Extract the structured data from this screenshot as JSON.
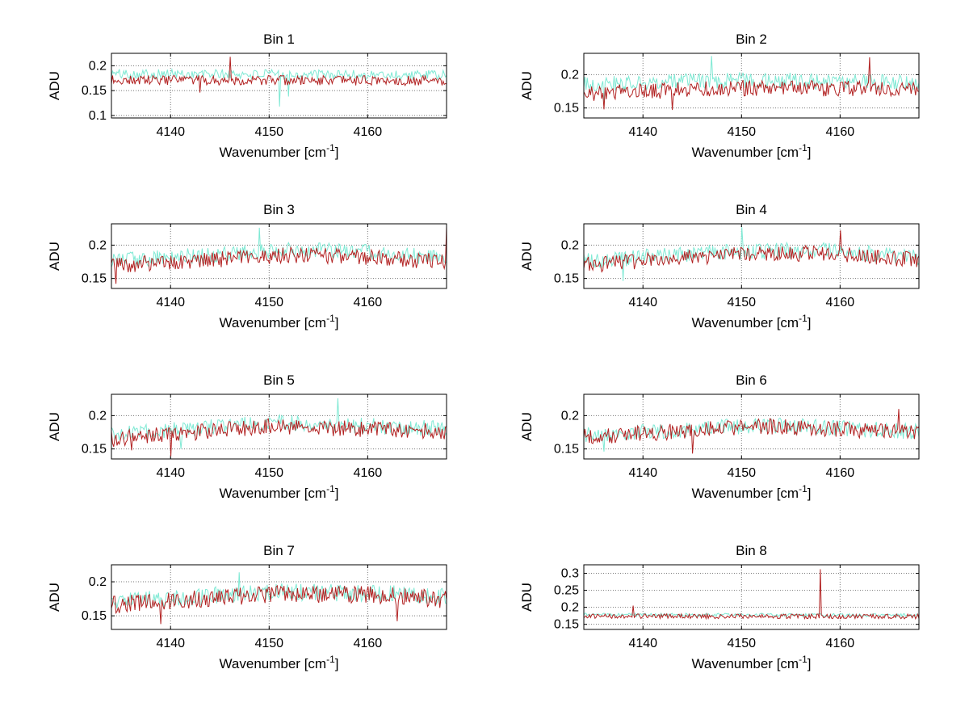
{
  "figure": {
    "background": "#FFFFFF"
  },
  "colors": {
    "trace_cyan": "#7FE9D4",
    "trace_red": "#B22222",
    "axis": "#000000",
    "grid_dots": "#777777",
    "background": "#FFFFFF"
  },
  "chart_data": [
    {
      "type": "line",
      "title": "Bin 1",
      "xlabel": {
        "main": "Wavenumber [cm",
        "sup": "-1",
        "end": "]"
      },
      "ylabel": "ADU",
      "x_range": [
        4134,
        4168
      ],
      "x_ticks": [
        4140,
        4150,
        4160
      ],
      "ylim": [
        0.095,
        0.225
      ],
      "y_ticks": [
        0.1,
        0.15,
        0.2
      ],
      "grid": true,
      "legend": "none",
      "series": [
        {
          "name": "cyan-trace",
          "color": "#7FE9D4",
          "seed": 101,
          "noise": 0.01,
          "baseline": [
            [
              4134,
              0.184
            ],
            [
              4168,
              0.181
            ]
          ],
          "spikes": [
            [
              4151,
              0.118
            ],
            [
              4152,
              0.138
            ]
          ]
        },
        {
          "name": "red-trace",
          "color": "#B22222",
          "seed": 202,
          "noise": 0.01,
          "baseline": [
            [
              4134,
              0.171
            ],
            [
              4168,
              0.17
            ]
          ],
          "spikes": [
            [
              4146,
              0.218
            ],
            [
              4143,
              0.146
            ]
          ]
        }
      ]
    },
    {
      "type": "line",
      "title": "Bin 2",
      "xlabel": {
        "main": "Wavenumber [cm",
        "sup": "-1",
        "end": "]"
      },
      "ylabel": "ADU",
      "x_range": [
        4134,
        4168
      ],
      "x_ticks": [
        4140,
        4150,
        4160
      ],
      "ylim": [
        0.135,
        0.232
      ],
      "y_ticks": [
        0.15,
        0.2
      ],
      "grid": true,
      "legend": "none",
      "series": [
        {
          "name": "cyan-trace",
          "color": "#7FE9D4",
          "seed": 103,
          "noise": 0.012,
          "baseline": [
            [
              4134,
              0.186
            ],
            [
              4150,
              0.192
            ],
            [
              4168,
              0.188
            ]
          ],
          "spikes": [
            [
              4147,
              0.228
            ],
            [
              4136,
              0.152
            ]
          ]
        },
        {
          "name": "red-trace",
          "color": "#B22222",
          "seed": 204,
          "noise": 0.012,
          "baseline": [
            [
              4134,
              0.172
            ],
            [
              4150,
              0.18
            ],
            [
              4168,
              0.178
            ]
          ],
          "spikes": [
            [
              4136,
              0.148
            ],
            [
              4143,
              0.147
            ],
            [
              4163,
              0.226
            ]
          ]
        }
      ]
    },
    {
      "type": "line",
      "title": "Bin 3",
      "xlabel": {
        "main": "Wavenumber [cm",
        "sup": "-1",
        "end": "]"
      },
      "ylabel": "ADU",
      "x_range": [
        4134,
        4168
      ],
      "x_ticks": [
        4140,
        4150,
        4160
      ],
      "ylim": [
        0.135,
        0.232
      ],
      "y_ticks": [
        0.15,
        0.2
      ],
      "grid": true,
      "legend": "none",
      "series": [
        {
          "name": "cyan-trace",
          "color": "#7FE9D4",
          "seed": 105,
          "noise": 0.012,
          "baseline": [
            [
              4134,
              0.176
            ],
            [
              4152,
              0.193
            ],
            [
              4158,
              0.192
            ],
            [
              4168,
              0.18
            ]
          ],
          "spikes": [
            [
              4149,
              0.226
            ]
          ]
        },
        {
          "name": "red-trace",
          "color": "#B22222",
          "seed": 206,
          "noise": 0.012,
          "baseline": [
            [
              4134,
              0.169
            ],
            [
              4152,
              0.185
            ],
            [
              4158,
              0.184
            ],
            [
              4168,
              0.175
            ]
          ],
          "spikes": [
            [
              4134.4,
              0.142
            ],
            [
              4168,
              0.228
            ]
          ]
        }
      ]
    },
    {
      "type": "line",
      "title": "Bin 4",
      "xlabel": {
        "main": "Wavenumber [cm",
        "sup": "-1",
        "end": "]"
      },
      "ylabel": "ADU",
      "x_range": [
        4134,
        4168
      ],
      "x_ticks": [
        4140,
        4150,
        4160
      ],
      "ylim": [
        0.135,
        0.232
      ],
      "y_ticks": [
        0.15,
        0.2
      ],
      "grid": true,
      "legend": "none",
      "series": [
        {
          "name": "cyan-trace",
          "color": "#7FE9D4",
          "seed": 107,
          "noise": 0.012,
          "baseline": [
            [
              4134,
              0.176
            ],
            [
              4148,
              0.19
            ],
            [
              4158,
              0.193
            ],
            [
              4168,
              0.182
            ]
          ],
          "spikes": [
            [
              4138,
              0.146
            ],
            [
              4150,
              0.227
            ]
          ]
        },
        {
          "name": "red-trace",
          "color": "#B22222",
          "seed": 208,
          "noise": 0.012,
          "baseline": [
            [
              4134,
              0.17
            ],
            [
              4148,
              0.185
            ],
            [
              4158,
              0.188
            ],
            [
              4168,
              0.177
            ]
          ],
          "spikes": [
            [
              4160,
              0.222
            ]
          ]
        }
      ]
    },
    {
      "type": "line",
      "title": "Bin 5",
      "xlabel": {
        "main": "Wavenumber [cm",
        "sup": "-1",
        "end": "]"
      },
      "ylabel": "ADU",
      "x_range": [
        4134,
        4168
      ],
      "x_ticks": [
        4140,
        4150,
        4160
      ],
      "ylim": [
        0.135,
        0.232
      ],
      "y_ticks": [
        0.15,
        0.2
      ],
      "grid": true,
      "legend": "none",
      "series": [
        {
          "name": "cyan-trace",
          "color": "#7FE9D4",
          "seed": 109,
          "noise": 0.012,
          "baseline": [
            [
              4134,
              0.172
            ],
            [
              4150,
              0.19
            ],
            [
              4168,
              0.18
            ]
          ],
          "spikes": [
            [
              4157,
              0.226
            ],
            [
              4141,
              0.15
            ]
          ]
        },
        {
          "name": "red-trace",
          "color": "#B22222",
          "seed": 210,
          "noise": 0.012,
          "baseline": [
            [
              4134,
              0.165
            ],
            [
              4150,
              0.184
            ],
            [
              4168,
              0.176
            ]
          ],
          "spikes": [
            [
              4140,
              0.139
            ],
            [
              4136,
              0.148
            ]
          ]
        }
      ]
    },
    {
      "type": "line",
      "title": "Bin 6",
      "xlabel": {
        "main": "Wavenumber [cm",
        "sup": "-1",
        "end": "]"
      },
      "ylabel": "ADU",
      "x_range": [
        4134,
        4168
      ],
      "x_ticks": [
        4140,
        4150,
        4160
      ],
      "ylim": [
        0.135,
        0.232
      ],
      "y_ticks": [
        0.15,
        0.2
      ],
      "grid": true,
      "legend": "none",
      "series": [
        {
          "name": "cyan-trace",
          "color": "#7FE9D4",
          "seed": 111,
          "noise": 0.012,
          "baseline": [
            [
              4134,
              0.17
            ],
            [
              4152,
              0.186
            ],
            [
              4168,
              0.176
            ]
          ],
          "spikes": [
            [
              4136,
              0.146
            ]
          ]
        },
        {
          "name": "red-trace",
          "color": "#B22222",
          "seed": 212,
          "noise": 0.012,
          "baseline": [
            [
              4134,
              0.168
            ],
            [
              4152,
              0.184
            ],
            [
              4168,
              0.175
            ]
          ],
          "spikes": [
            [
              4145,
              0.143
            ],
            [
              4166,
              0.21
            ]
          ]
        }
      ]
    },
    {
      "type": "line",
      "title": "Bin 7",
      "xlabel": {
        "main": "Wavenumber [cm",
        "sup": "-1",
        "end": "]"
      },
      "ylabel": "ADU",
      "x_range": [
        4134,
        4168
      ],
      "x_ticks": [
        4140,
        4150,
        4160
      ],
      "ylim": [
        0.13,
        0.225
      ],
      "y_ticks": [
        0.15,
        0.2
      ],
      "grid": true,
      "legend": "none",
      "series": [
        {
          "name": "cyan-trace",
          "color": "#7FE9D4",
          "seed": 113,
          "noise": 0.013,
          "baseline": [
            [
              4134,
              0.17
            ],
            [
              4150,
              0.185
            ],
            [
              4160,
              0.184
            ],
            [
              4168,
              0.178
            ]
          ],
          "spikes": [
            [
              4147,
              0.214
            ]
          ]
        },
        {
          "name": "red-trace",
          "color": "#B22222",
          "seed": 214,
          "noise": 0.013,
          "baseline": [
            [
              4134,
              0.166
            ],
            [
              4150,
              0.182
            ],
            [
              4160,
              0.181
            ],
            [
              4168,
              0.174
            ]
          ],
          "spikes": [
            [
              4139,
              0.138
            ],
            [
              4163,
              0.142
            ]
          ]
        }
      ]
    },
    {
      "type": "line",
      "title": "Bin 8",
      "xlabel": {
        "main": "Wavenumber [cm",
        "sup": "-1",
        "end": "]"
      },
      "ylabel": "ADU",
      "x_range": [
        4134,
        4168
      ],
      "x_ticks": [
        4140,
        4150,
        4160
      ],
      "ylim": [
        0.135,
        0.325
      ],
      "y_ticks": [
        0.15,
        0.2,
        0.25,
        0.3
      ],
      "grid": true,
      "legend": "none",
      "series": [
        {
          "name": "cyan-trace",
          "color": "#7FE9D4",
          "seed": 115,
          "noise": 0.005,
          "baseline": [
            [
              4134,
              0.178
            ],
            [
              4168,
              0.177
            ]
          ],
          "spikes": []
        },
        {
          "name": "red-trace",
          "color": "#B22222",
          "seed": 216,
          "noise": 0.007,
          "baseline": [
            [
              4134,
              0.174
            ],
            [
              4168,
              0.173
            ]
          ],
          "spikes": [
            [
              4158,
              0.312
            ],
            [
              4139,
              0.205
            ]
          ]
        }
      ]
    }
  ]
}
